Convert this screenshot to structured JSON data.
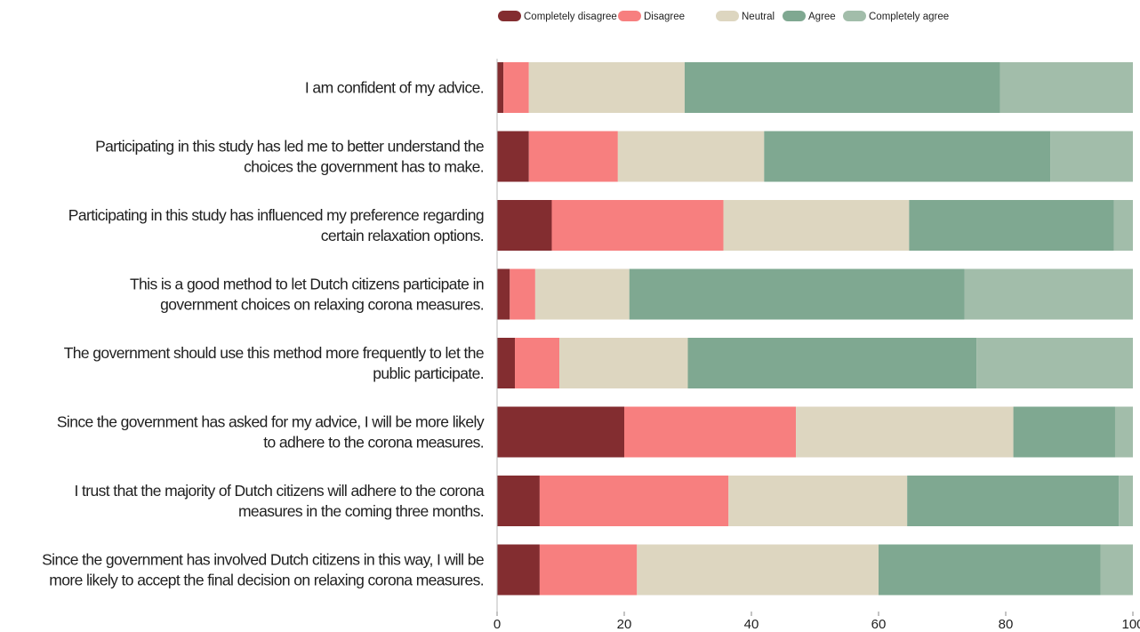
{
  "chart_data": {
    "type": "bar",
    "orientation": "horizontal",
    "stacked": true,
    "title": "",
    "xlabel": "",
    "ylabel": "",
    "xlim": [
      0,
      100
    ],
    "xticks": [
      "0",
      "20",
      "40",
      "60",
      "80",
      "100"
    ],
    "grid": false,
    "legend_position": "top",
    "categories": [
      [
        "I am confident of my advice."
      ],
      [
        "Participating in this study has led me to better understand the",
        "choices the government has to make."
      ],
      [
        "Participating in this study has influenced my preference regarding",
        "certain relaxation options."
      ],
      [
        "This is a good method to let Dutch citizens participate in",
        "government choices on relaxing corona measures."
      ],
      [
        "The government should use this method more frequently to let the",
        "public participate."
      ],
      [
        "Since the government has asked for my advice, I will be more likely",
        "to adhere to the corona measures."
      ],
      [
        "I trust that the majority of Dutch citizens will adhere to the corona",
        "measures in the coming three months."
      ],
      [
        "Since the government has involved Dutch citizens in this way, I will be",
        "more likely to accept the final decision on relaxing corona measures."
      ]
    ],
    "series": [
      {
        "name": "Completely disagree",
        "color": "#832d30",
        "values": [
          1,
          5,
          8.6,
          2,
          2.8,
          20,
          6.7,
          6.7
        ]
      },
      {
        "name": "Disagree",
        "color": "#f77f7f",
        "values": [
          4,
          14,
          27,
          4,
          7,
          27,
          29.7,
          15.3
        ]
      },
      {
        "name": "Neutral",
        "color": "#ddd6c0",
        "values": [
          24.5,
          23,
          29.2,
          14.8,
          20.2,
          34.2,
          28.1,
          38
        ]
      },
      {
        "name": "Agree",
        "color": "#7fa891",
        "values": [
          49.6,
          45,
          32.2,
          52.7,
          45.4,
          16,
          33.3,
          34.9
        ]
      },
      {
        "name": "Completely agree",
        "color": "#a2bdaa",
        "values": [
          20.9,
          13,
          3,
          26.5,
          24.6,
          2.8,
          2.2,
          5.1
        ]
      }
    ]
  }
}
